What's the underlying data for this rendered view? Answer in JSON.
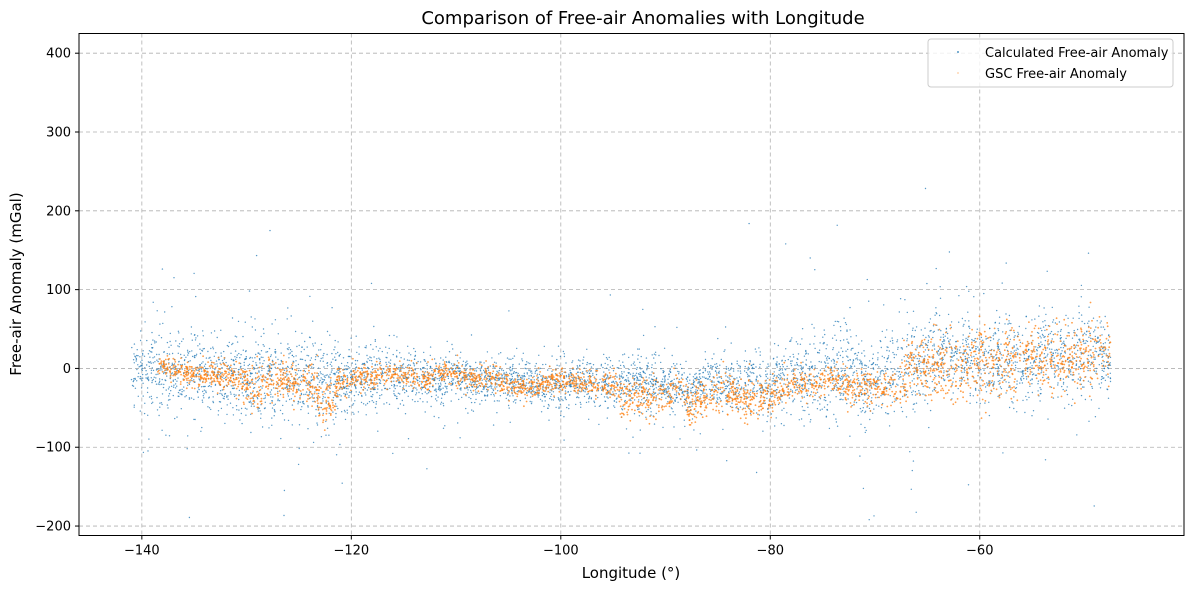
{
  "chart_data": {
    "type": "scatter",
    "title": "Comparison of Free-air Anomalies with Longitude",
    "xlabel": "Longitude (°)",
    "ylabel": "Free-air Anomaly (mGal)",
    "xlim": [
      -146,
      -40.5
    ],
    "ylim": [
      -212,
      425
    ],
    "xticks": [
      -140,
      -120,
      -100,
      -80,
      -60
    ],
    "xtick_labels": [
      "−140",
      "−120",
      "−100",
      "−80",
      "−60"
    ],
    "yticks": [
      -200,
      -100,
      0,
      100,
      200,
      300,
      400
    ],
    "ytick_labels": [
      "−200",
      "−100",
      "0",
      "100",
      "200",
      "300",
      "400"
    ],
    "grid": true,
    "legend_position": "top-right",
    "series": [
      {
        "name": "Calculated Free-air Anomaly",
        "color": "#1f77b4",
        "marker": "point",
        "profile": {
          "x": [
            -141,
            -139,
            -137,
            -135,
            -133,
            -131,
            -129.5,
            -128,
            -126,
            -124,
            -123,
            -122,
            -120,
            -118,
            -116,
            -114,
            -112,
            -110,
            -108,
            -106,
            -104,
            -102,
            -100,
            -98,
            -96,
            -94,
            -92,
            -90,
            -88,
            -86,
            -84,
            -82,
            -80,
            -78,
            -76,
            -74,
            -72,
            -71,
            -69,
            -67,
            -65,
            -63,
            -61,
            -59.5,
            -58,
            -56,
            -54,
            -52,
            -50,
            -47.5
          ],
          "center": [
            0,
            0,
            -5,
            -8,
            -10,
            -8,
            -15,
            -15,
            -12,
            -8,
            -20,
            -20,
            -15,
            -12,
            -10,
            -10,
            -15,
            -10,
            -15,
            -15,
            -18,
            -20,
            -22,
            -15,
            -18,
            -15,
            -18,
            -22,
            -30,
            -20,
            -20,
            -18,
            -25,
            -10,
            -8,
            -5,
            0,
            -20,
            -5,
            0,
            10,
            15,
            15,
            0,
            15,
            5,
            20,
            10,
            15,
            15
          ],
          "spread": [
            45,
            55,
            55,
            55,
            55,
            55,
            60,
            55,
            55,
            50,
            60,
            50,
            40,
            45,
            40,
            40,
            30,
            30,
            25,
            25,
            30,
            30,
            30,
            25,
            30,
            35,
            40,
            30,
            30,
            30,
            35,
            40,
            45,
            50,
            50,
            55,
            55,
            60,
            60,
            60,
            60,
            55,
            55,
            55,
            55,
            50,
            50,
            50,
            50,
            45
          ]
        }
      },
      {
        "name": "GSC Free-air Anomaly",
        "color": "#ff7f0e",
        "marker": "point",
        "profile": {
          "x": [
            -138.5,
            -136,
            -134,
            -132,
            -130.5,
            -129.5,
            -128.5,
            -127,
            -125,
            -123.5,
            -122.8,
            -121,
            -119,
            -117,
            -115,
            -113,
            -111,
            -109,
            -107,
            -105,
            -103,
            -101,
            -99,
            -97,
            -95,
            -94,
            -92,
            -90,
            -89,
            -88,
            -86,
            -84,
            -82,
            -80,
            -78,
            -76,
            -74,
            -72,
            -70,
            -68,
            -67,
            -66,
            -64,
            -62,
            -60,
            -58,
            -56,
            -54,
            -52,
            -50,
            -47.5
          ],
          "center": [
            5,
            -5,
            -8,
            -10,
            -15,
            -30,
            -20,
            -12,
            -20,
            -25,
            -50,
            -15,
            -10,
            -10,
            -8,
            -15,
            -5,
            -12,
            -10,
            -20,
            -25,
            -18,
            -15,
            -20,
            -22,
            -40,
            -30,
            -40,
            -20,
            -50,
            -35,
            -30,
            -40,
            -35,
            -20,
            -20,
            -15,
            -30,
            -20,
            -30,
            -5,
            0,
            5,
            0,
            10,
            5,
            15,
            10,
            10,
            15,
            15
          ],
          "spread": [
            10,
            15,
            15,
            20,
            20,
            30,
            25,
            20,
            25,
            25,
            35,
            20,
            18,
            15,
            15,
            15,
            15,
            15,
            15,
            15,
            15,
            15,
            15,
            15,
            20,
            25,
            25,
            25,
            20,
            25,
            25,
            25,
            25,
            25,
            20,
            20,
            20,
            25,
            25,
            25,
            45,
            40,
            40,
            45,
            50,
            45,
            40,
            40,
            45,
            45,
            40
          ]
        }
      }
    ]
  }
}
